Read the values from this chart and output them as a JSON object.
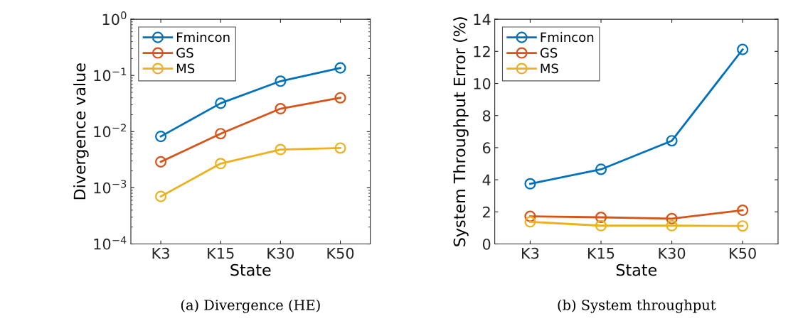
{
  "chart_data": [
    {
      "type": "line",
      "title": "(a) Divergence (HE)",
      "xlabel": "State",
      "ylabel": "Divergence value",
      "categories": [
        "K3",
        "K15",
        "K30",
        "K50"
      ],
      "log": "y",
      "ylim": [
        0.0001,
        1
      ],
      "yticks": [
        {
          "value": 0.0001,
          "label": "10$^{−4}$"
        },
        {
          "value": 0.001,
          "label": "10$^{−3}$"
        },
        {
          "value": 0.01,
          "label": "10$^{−2}$"
        },
        {
          "value": 0.1,
          "label": "10$^{−1}$"
        },
        {
          "value": 1,
          "label": "10$^{0}$"
        }
      ],
      "marker": "circle",
      "line_style": "solid",
      "grid": false,
      "legend": "top left",
      "series": [
        {
          "name": "Fmincon",
          "color": "#0072bd",
          "values": [
            0.0082,
            0.032,
            0.079,
            0.136
          ]
        },
        {
          "name": "GS",
          "color": "#d95319",
          "values": [
            0.0029,
            0.0092,
            0.0256,
            0.04
          ]
        },
        {
          "name": "MS",
          "color": "#edb120",
          "values": [
            0.0007,
            0.0027,
            0.0048,
            0.0051
          ]
        }
      ]
    },
    {
      "type": "line",
      "title": "(b) System throughput",
      "xlabel": "State",
      "ylabel": "System Throughput Error (%)",
      "categories": [
        "K3",
        "K15",
        "K30",
        "K50"
      ],
      "ylim": [
        0,
        14
      ],
      "yticks": [
        0,
        2,
        4,
        6,
        8,
        10,
        12,
        14
      ],
      "marker": "circle",
      "line_style": "solid",
      "grid": false,
      "legend": "top left",
      "series": [
        {
          "name": "Fmincon",
          "color": "#0072bd",
          "values": [
            3.75,
            4.65,
            6.43,
            12.12
          ]
        },
        {
          "name": "GS",
          "color": "#d95319",
          "values": [
            1.72,
            1.66,
            1.58,
            2.1
          ]
        },
        {
          "name": "MS",
          "color": "#edb120",
          "values": [
            1.38,
            1.14,
            1.14,
            1.12
          ]
        }
      ]
    }
  ]
}
